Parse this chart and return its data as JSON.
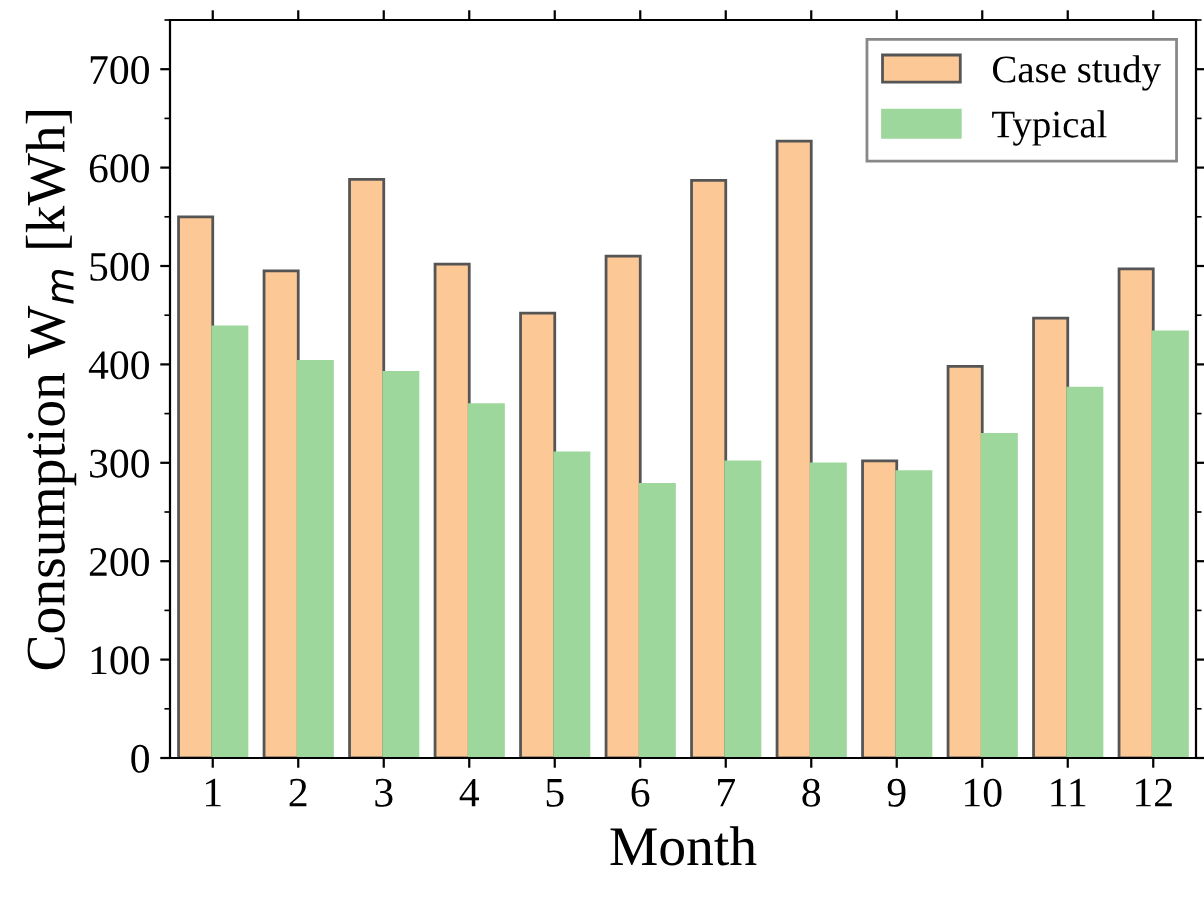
{
  "chart_data": {
    "type": "bar",
    "xlabel": "Month",
    "ylabel": "Consumption W$_{m}$ [kWh]",
    "categories": [
      "1",
      "2",
      "3",
      "4",
      "5",
      "6",
      "7",
      "8",
      "9",
      "10",
      "11",
      "12"
    ],
    "series": [
      {
        "name": "Case study",
        "color": "#fcc896",
        "values": [
          550,
          495,
          588,
          502,
          452,
          510,
          587,
          627,
          302,
          398,
          447,
          497
        ]
      },
      {
        "name": "Typical",
        "color": "#9dd79b",
        "values": [
          438,
          403,
          392,
          359,
          310,
          278,
          301,
          299,
          291,
          329,
          376,
          433
        ]
      }
    ],
    "ylim": [
      0,
      750
    ],
    "yticks": [
      0,
      100,
      200,
      300,
      400,
      500,
      600,
      700
    ],
    "grid": false,
    "legend": "top right"
  }
}
